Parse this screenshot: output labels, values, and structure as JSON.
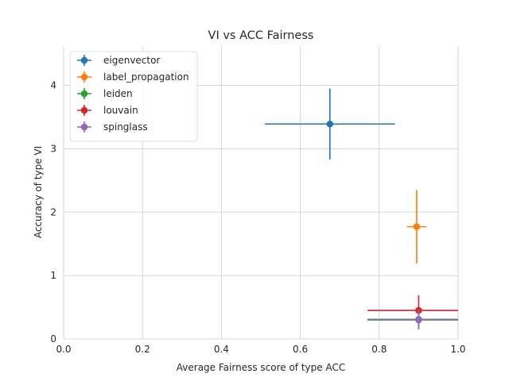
{
  "chart_data": {
    "type": "scatter",
    "title": "VI vs ACC Fairness",
    "xlabel": "Average Fairness score of type ACC",
    "ylabel": "Accuracy of type VI",
    "xlim": [
      0,
      1
    ],
    "ylim": [
      0,
      4.62
    ],
    "x_ticks": [
      "0.0",
      "0.2",
      "0.4",
      "0.6",
      "0.8",
      "1.0"
    ],
    "y_ticks": [
      "0",
      "1",
      "2",
      "3",
      "4"
    ],
    "grid": true,
    "legend_position": "top-left",
    "series": [
      {
        "name": "eigenvector",
        "color": "#1f77b4",
        "x": 0.675,
        "y": 3.39,
        "xerr": 0.165,
        "yerr": 0.56
      },
      {
        "name": "label_propagation",
        "color": "#ff7f0e",
        "x": 0.895,
        "y": 1.77,
        "xerr": 0.025,
        "yerr": 0.58
      },
      {
        "name": "leiden",
        "color": "#2ca02c",
        "x": 0.9,
        "y": 0.3,
        "xerr": 0.13,
        "yerr": 0.15
      },
      {
        "name": "louvain",
        "color": "#d62728",
        "x": 0.9,
        "y": 0.45,
        "xerr": 0.13,
        "yerr": 0.24
      },
      {
        "name": "spinglass",
        "color": "#9467bd",
        "x": 0.9,
        "y": 0.31,
        "xerr": 0.13,
        "yerr": 0.15
      }
    ]
  }
}
